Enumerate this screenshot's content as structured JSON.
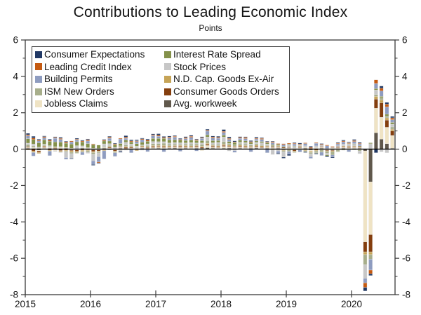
{
  "title": "Contributions to Leading Economic Index",
  "subtitle": "Points",
  "chart_data": {
    "type": "bar",
    "stacked": true,
    "title": "Contributions to Leading Economic Index",
    "ylabel_note": "Points",
    "ylim": [
      -8,
      6
    ],
    "y_major_ticks": [
      -8,
      -6,
      -4,
      -2,
      0,
      2,
      4,
      6
    ],
    "y_minor_ticks": [
      -7,
      -5,
      -3,
      -1,
      1,
      3,
      5
    ],
    "x_tick_labels": [
      "2015",
      "2016",
      "2017",
      "2018",
      "2019",
      "2020"
    ],
    "x_range_months": "Jan 2015 - Aug 2020",
    "months_per_year": 12,
    "grid": false,
    "legend_position": "upper-left-inside",
    "legend_rows": [
      [
        "Consumer Expectations",
        "Interest Rate Spread"
      ],
      [
        "Leading Credit Index",
        "Stock Prices"
      ],
      [
        "Building Permits",
        "N.D. Cap. Goods Ex-Air"
      ],
      [
        "ISM New Orders",
        "Consumer Goods Orders"
      ],
      [
        "Jobless Claims",
        "Avg. workweek"
      ]
    ],
    "colors": {
      "Consumer Expectations": "#203864",
      "Leading Credit Index": "#C55A11",
      "Building Permits": "#8E9CC0",
      "ISM New Orders": "#A7AE8B",
      "Jobless Claims": "#EFE3C4",
      "Interest Rate Spread": "#84914A",
      "Stock Prices": "#C7C7C7",
      "N.D. Cap. Goods Ex-Air": "#C6A457",
      "Consumer Goods Orders": "#843E0E",
      "Avg. workweek": "#60584C"
    },
    "series": [
      {
        "name": "Avg. workweek",
        "values": [
          0.05,
          0.04,
          -0.06,
          0.04,
          0.05,
          -0.04,
          0.04,
          0.05,
          -0.04,
          0.04,
          0.05,
          0.04,
          -0.05,
          0.04,
          0.05,
          -0.04,
          0.04,
          0.05,
          0.04,
          -0.05,
          0.04,
          0.05,
          -0.04,
          0.04,
          0.05,
          0.04,
          0.05,
          0.06,
          0.04,
          0.05,
          0.04,
          0.05,
          0.06,
          0.08,
          0.05,
          0.04,
          0.05,
          0.06,
          0.04,
          0.05,
          0.04,
          0.05,
          0.06,
          0.04,
          0.05,
          0.04,
          0.05,
          -0.04,
          0.04,
          -0.05,
          0.04,
          0.05,
          -0.06,
          0.04,
          0.05,
          0.04,
          -0.05,
          0.04,
          0.05,
          0.04,
          0.04,
          0.05,
          -0.1,
          -1.8,
          0.9,
          0.55,
          0.3,
          0.05
        ]
      },
      {
        "name": "Jobless Claims",
        "values": [
          0.05,
          0.06,
          -0.04,
          0.05,
          0.04,
          -0.05,
          0.06,
          0.04,
          0.05,
          -0.04,
          0.05,
          0.04,
          0.05,
          -0.04,
          0.04,
          0.05,
          -0.04,
          0.05,
          -0.06,
          0.05,
          0.04,
          0.05,
          0.04,
          0.05,
          0.06,
          0.05,
          0.04,
          0.05,
          0.06,
          0.04,
          0.05,
          0.06,
          -0.08,
          0.12,
          0.06,
          0.05,
          0.1,
          0.06,
          0.05,
          0.06,
          0.05,
          0.04,
          0.05,
          0.04,
          0.06,
          0.05,
          0.04,
          0.05,
          0.04,
          0.05,
          0.04,
          0.05,
          -0.06,
          0.04,
          0.05,
          -0.04,
          0.05,
          0.04,
          0.05,
          0.04,
          0.05,
          0.04,
          -5.0,
          -2.9,
          1.35,
          1.2,
          0.9,
          0.7
        ]
      },
      {
        "name": "Consumer Goods Orders",
        "values": [
          0.05,
          -0.1,
          -0.08,
          0.05,
          -0.06,
          0.05,
          -0.08,
          -0.06,
          -0.05,
          -0.08,
          -0.06,
          -0.05,
          -0.08,
          -0.06,
          -0.05,
          0.05,
          -0.06,
          0.04,
          0.06,
          0.05,
          -0.05,
          0.04,
          0.05,
          0.06,
          0.05,
          0.06,
          0.04,
          0.05,
          0.06,
          0.05,
          0.04,
          0.06,
          0.05,
          0.06,
          0.06,
          0.05,
          0.06,
          0.05,
          0.04,
          0.06,
          0.05,
          0.04,
          0.06,
          0.05,
          0.04,
          0.05,
          0.04,
          0.05,
          0.04,
          -0.05,
          0.05,
          -0.04,
          0.05,
          -0.06,
          0.04,
          -0.05,
          -0.04,
          0.05,
          0.04,
          0.05,
          0.04,
          0.05,
          -0.55,
          -0.95,
          0.5,
          0.8,
          0.4,
          0.25
        ]
      },
      {
        "name": "N.D. Cap. Goods Ex-Air",
        "values": [
          -0.05,
          -0.08,
          -0.06,
          0.04,
          -0.05,
          0.04,
          -0.06,
          -0.05,
          -0.08,
          -0.05,
          -0.06,
          -0.04,
          -0.06,
          -0.05,
          -0.04,
          0.04,
          -0.05,
          -0.04,
          0.05,
          0.04,
          -0.04,
          0.05,
          0.04,
          0.05,
          0.05,
          0.06,
          0.05,
          0.04,
          0.05,
          0.06,
          0.05,
          0.04,
          0.05,
          0.06,
          0.04,
          0.05,
          0.06,
          0.05,
          0.04,
          0.05,
          0.06,
          0.04,
          0.05,
          0.06,
          0.04,
          -0.05,
          0.04,
          -0.04,
          -0.05,
          -0.04,
          0.04,
          -0.05,
          -0.06,
          -0.04,
          -0.05,
          -0.04,
          -0.05,
          -0.04,
          0.04,
          0.04,
          0.04,
          -0.05,
          -0.15,
          -0.15,
          0.15,
          0.15,
          0.12,
          0.1
        ]
      },
      {
        "name": "ISM New Orders",
        "values": [
          0.1,
          0.08,
          0.06,
          0.05,
          0.04,
          0.05,
          0.04,
          -0.05,
          -0.08,
          -0.06,
          -0.05,
          -0.08,
          -0.1,
          -0.06,
          0.05,
          0.06,
          -0.05,
          0.04,
          0.08,
          0.06,
          0.04,
          0.05,
          0.08,
          0.1,
          0.1,
          0.12,
          0.1,
          0.08,
          0.06,
          0.08,
          0.1,
          0.08,
          0.1,
          0.15,
          0.06,
          0.08,
          0.15,
          0.1,
          0.08,
          0.1,
          0.08,
          0.06,
          0.08,
          0.06,
          0.04,
          0.05,
          0.04,
          -0.06,
          -0.08,
          -0.05,
          -0.04,
          -0.06,
          -0.08,
          -0.1,
          -0.08,
          -0.1,
          -0.12,
          -0.08,
          -0.06,
          -0.05,
          -0.04,
          -0.05,
          -0.55,
          -0.25,
          0.1,
          0.12,
          0.1,
          0.12
        ]
      },
      {
        "name": "Stock Prices",
        "values": [
          0.08,
          0.1,
          0.05,
          0.04,
          0.06,
          -0.04,
          -0.05,
          -0.3,
          -0.25,
          0.15,
          0.08,
          -0.06,
          -0.35,
          -0.2,
          0.15,
          0.1,
          0.06,
          -0.08,
          0.15,
          0.08,
          0.05,
          -0.06,
          0.08,
          0.12,
          0.1,
          0.08,
          0.06,
          0.08,
          0.08,
          0.06,
          0.08,
          0.05,
          0.08,
          0.2,
          0.08,
          0.1,
          0.25,
          -0.1,
          -0.08,
          0.06,
          0.08,
          0.05,
          0.08,
          0.1,
          0.05,
          -0.25,
          -0.1,
          -0.3,
          0.12,
          0.1,
          0.05,
          0.08,
          -0.15,
          0.1,
          0.08,
          -0.08,
          0.05,
          0.06,
          0.1,
          0.12,
          0.1,
          -0.15,
          -0.75,
          0.3,
          0.25,
          -0.15,
          -0.2,
          0.15
        ]
      },
      {
        "name": "Interest Rate Spread",
        "values": [
          0.25,
          0.25,
          0.24,
          0.24,
          0.25,
          0.26,
          0.25,
          0.24,
          0.23,
          0.22,
          0.22,
          0.23,
          0.2,
          0.18,
          0.16,
          0.15,
          0.14,
          0.13,
          0.12,
          0.12,
          0.13,
          0.14,
          0.15,
          0.17,
          0.18,
          0.18,
          0.17,
          0.16,
          0.15,
          0.14,
          0.14,
          0.13,
          0.13,
          0.12,
          0.12,
          0.11,
          0.1,
          0.1,
          0.11,
          0.11,
          0.1,
          0.09,
          0.08,
          0.07,
          0.07,
          0.06,
          0.06,
          0.05,
          0.04,
          0.03,
          0.02,
          0.01,
          0,
          -0.03,
          -0.04,
          -0.06,
          -0.05,
          -0.03,
          0,
          0.02,
          0.03,
          0.04,
          0.02,
          0.05,
          0.08,
          0.08,
          0.1,
          0.1
        ]
      },
      {
        "name": "Building Permits",
        "values": [
          0.15,
          -0.2,
          0.1,
          0.12,
          -0.25,
          0.2,
          0.15,
          -0.1,
          0.12,
          0.1,
          -0.15,
          0.14,
          -0.2,
          -0.3,
          -0.45,
          0.15,
          -0.2,
          0.25,
          0.1,
          -0.15,
          0.12,
          0.14,
          -0.1,
          0.15,
          0.12,
          -0.15,
          0.1,
          0.14,
          -0.12,
          0.1,
          0.15,
          -0.1,
          0.12,
          0.2,
          0.14,
          0.12,
          0.15,
          0.12,
          -0.1,
          0.1,
          0.12,
          -0.15,
          0.1,
          0.12,
          -0.2,
          0.1,
          -0.12,
          0.1,
          -0.15,
          0.1,
          -0.12,
          0.12,
          -0.1,
          0.14,
          -0.18,
          0.15,
          -0.12,
          0.1,
          0.12,
          -0.1,
          0.12,
          0.1,
          -0.25,
          -0.6,
          0.28,
          0.3,
          0.4,
          0.15
        ]
      },
      {
        "name": "Leading Credit Index",
        "values": [
          0.06,
          0.08,
          0.05,
          0.06,
          0.05,
          0.04,
          0.05,
          0.06,
          0.05,
          0.04,
          0.05,
          0.06,
          0.04,
          -0.05,
          0.05,
          0.06,
          0.05,
          0.04,
          0.06,
          0.05,
          0.04,
          0.05,
          0.06,
          0.05,
          0.06,
          0.05,
          0.06,
          0.05,
          0.04,
          0.05,
          0.06,
          0.05,
          0.04,
          0.05,
          0.06,
          0.05,
          0.06,
          0.05,
          0.04,
          0.05,
          0.06,
          0.05,
          0.04,
          0.05,
          0.04,
          0.05,
          0.04,
          0.05,
          0.05,
          0.04,
          0.05,
          0.04,
          0.05,
          0.04,
          0.05,
          0.04,
          0.05,
          0.04,
          0.05,
          0.04,
          0.05,
          0.04,
          -0.25,
          -0.2,
          0.2,
          0.15,
          0.15,
          0.1
        ]
      },
      {
        "name": "Consumer Expectations",
        "values": [
          0.08,
          0.1,
          0.05,
          0.04,
          0.06,
          0.04,
          0.06,
          0.05,
          -0.04,
          0.05,
          0.04,
          0.05,
          -0.05,
          -0.04,
          0.04,
          0.05,
          0.04,
          -0.06,
          0.08,
          0.06,
          0.05,
          0.04,
          0.06,
          0.05,
          0.08,
          0.06,
          0.05,
          0.04,
          0.05,
          0.06,
          0.05,
          0.04,
          0.05,
          0.06,
          0.05,
          0.06,
          0.1,
          0.08,
          0.06,
          0.05,
          0.04,
          0.05,
          0.06,
          0.04,
          0.05,
          0.04,
          -0.05,
          -0.06,
          -0.08,
          0.04,
          0.05,
          -0.04,
          0.06,
          -0.05,
          0.04,
          -0.06,
          -0.05,
          0.04,
          0.05,
          0.04,
          0.06,
          0.05,
          -0.2,
          -0.1,
          -0.2,
          0.12,
          0.1,
          0.08
        ]
      }
    ]
  }
}
